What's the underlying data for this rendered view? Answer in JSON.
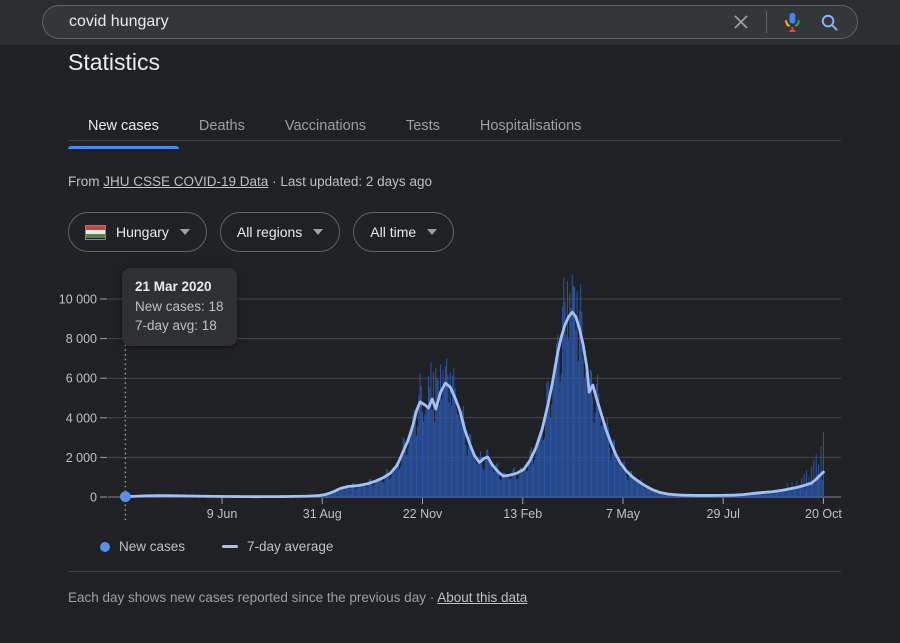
{
  "search": {
    "query": "covid hungary"
  },
  "page": {
    "title": "Statistics"
  },
  "tabs": [
    {
      "label": "New cases",
      "active": true
    },
    {
      "label": "Deaths",
      "active": false
    },
    {
      "label": "Vaccinations",
      "active": false
    },
    {
      "label": "Tests",
      "active": false
    },
    {
      "label": "Hospitalisations",
      "active": false
    }
  ],
  "source": {
    "prefix": "From",
    "link": "JHU CSSE COVID-19 Data",
    "separator": "·",
    "updated": "Last updated: 2 days ago"
  },
  "filters": {
    "country": {
      "label": "Hungary",
      "flag": "hungary-flag"
    },
    "region": {
      "label": "All regions"
    },
    "time": {
      "label": "All time"
    }
  },
  "tooltip": {
    "date": "21 Mar 2020",
    "line1": "New cases: 18",
    "line2": "7-day avg: 18"
  },
  "legend": [
    {
      "label": "New cases",
      "swatch": "dot"
    },
    {
      "label": "7-day average",
      "swatch": "line"
    }
  ],
  "footer": {
    "text": "Each day shows new cases reported since the previous day",
    "separator": "·",
    "link": "About this data"
  },
  "colors": {
    "accent-blue": "#4d8af0",
    "bar-blue": "#2b57ab",
    "avg-line-blue": "#a3c0f5",
    "dot-blue": "#5b8def",
    "grid": "#45484d",
    "axis-line": "#85898d",
    "tick-text": "#bdc1c6",
    "tick-mark": "#9aa0a6",
    "mic-blue": "#4285f4",
    "mic-red": "#ea4335",
    "mic-yellow": "#fbbc04",
    "mic-green": "#34a853",
    "search-blue": "#8ab4f8",
    "flag-red": "#c2473f",
    "flag-white": "#ece9e2",
    "flag-green": "#5a7d5c"
  },
  "chart_data": {
    "type": "bar",
    "title": "COVID-19 new cases in Hungary (daily bars with 7-day average line)",
    "x_axis": {
      "unit": "days since 21 Mar 2020",
      "start_date": "21 Mar 2020",
      "end_date": "20 Oct 2021",
      "ticks": [
        {
          "label": "9 Jun",
          "day": 80
        },
        {
          "label": "31 Aug",
          "day": 163
        },
        {
          "label": "22 Nov",
          "day": 246
        },
        {
          "label": "13 Feb",
          "day": 329
        },
        {
          "label": "7 May",
          "day": 412
        },
        {
          "label": "29 Jul",
          "day": 495
        },
        {
          "label": "20 Oct",
          "day": 578
        }
      ]
    },
    "y_axis": {
      "range": [
        0,
        11300
      ],
      "grid": true,
      "ticks": [
        {
          "value": 0,
          "label": "0"
        },
        {
          "value": 2000,
          "label": "2 000"
        },
        {
          "value": 4000,
          "label": "4 000"
        },
        {
          "value": 6000,
          "label": "6 000"
        },
        {
          "value": 8000,
          "label": "8 000"
        },
        {
          "value": 10000,
          "label": "10 000"
        }
      ]
    },
    "selected_point": {
      "date": "21 Mar 2020",
      "day": 0,
      "new_cases": 18,
      "seven_day_avg": 18
    },
    "legend_position": "bottom",
    "series": [
      {
        "name": "New cases",
        "type": "bar",
        "approximation": "daily bars estimated as 7-day average modulated by weekly reporting cycle; notable visible spikes listed in overrides",
        "weekly_amplitude": 0.2,
        "secondary_amplitude": 0.12,
        "overrides": {
          "251": 6100,
          "253": 6800,
          "255": 6300,
          "257": 6500,
          "259": 5900,
          "261": 6700,
          "263": 6400,
          "265": 6600,
          "267": 6200,
          "269": 6300,
          "362": 9600,
          "364": 9900,
          "366": 10900,
          "368": 10300,
          "370": 11200,
          "372": 10600,
          "374": 10400,
          "548": 700,
          "552": 760,
          "556": 820,
          "560": 950,
          "562": 1150,
          "564": 1350,
          "566": 1000,
          "568": 1550,
          "570": 1850,
          "572": 2150,
          "574": 1650,
          "576": 2550,
          "578": 3300
        }
      },
      {
        "name": "7-day average",
        "type": "line",
        "points": [
          [
            0,
            18
          ],
          [
            8,
            35
          ],
          [
            18,
            60
          ],
          [
            32,
            70
          ],
          [
            48,
            55
          ],
          [
            64,
            38
          ],
          [
            84,
            25
          ],
          [
            108,
            16
          ],
          [
            132,
            22
          ],
          [
            150,
            40
          ],
          [
            160,
            70
          ],
          [
            166,
            130
          ],
          [
            172,
            260
          ],
          [
            178,
            430
          ],
          [
            184,
            530
          ],
          [
            192,
            570
          ],
          [
            200,
            660
          ],
          [
            207,
            800
          ],
          [
            213,
            960
          ],
          [
            219,
            1180
          ],
          [
            225,
            1600
          ],
          [
            230,
            2300
          ],
          [
            234,
            2850
          ],
          [
            238,
            3600
          ],
          [
            241,
            4350
          ],
          [
            244,
            4800
          ],
          [
            248,
            4650
          ],
          [
            251,
            4500
          ],
          [
            254,
            4950
          ],
          [
            257,
            4450
          ],
          [
            261,
            5300
          ],
          [
            265,
            5750
          ],
          [
            269,
            5550
          ],
          [
            273,
            5000
          ],
          [
            277,
            4350
          ],
          [
            281,
            3400
          ],
          [
            285,
            2700
          ],
          [
            289,
            2100
          ],
          [
            293,
            1750
          ],
          [
            297,
            1950
          ],
          [
            300,
            2020
          ],
          [
            304,
            1600
          ],
          [
            309,
            1250
          ],
          [
            313,
            1060
          ],
          [
            318,
            1100
          ],
          [
            324,
            1200
          ],
          [
            330,
            1400
          ],
          [
            335,
            1850
          ],
          [
            340,
            2500
          ],
          [
            345,
            3400
          ],
          [
            350,
            4700
          ],
          [
            354,
            5900
          ],
          [
            358,
            7300
          ],
          [
            361,
            8100
          ],
          [
            364,
            8700
          ],
          [
            367,
            9100
          ],
          [
            370,
            9340
          ],
          [
            373,
            9100
          ],
          [
            376,
            8500
          ],
          [
            379,
            7700
          ],
          [
            382,
            6600
          ],
          [
            384,
            5300
          ],
          [
            387,
            5650
          ],
          [
            390,
            5000
          ],
          [
            394,
            4200
          ],
          [
            398,
            3400
          ],
          [
            402,
            2750
          ],
          [
            406,
            2150
          ],
          [
            410,
            1700
          ],
          [
            415,
            1300
          ],
          [
            420,
            1010
          ],
          [
            425,
            780
          ],
          [
            430,
            580
          ],
          [
            436,
            380
          ],
          [
            442,
            240
          ],
          [
            450,
            140
          ],
          [
            460,
            95
          ],
          [
            472,
            80
          ],
          [
            484,
            78
          ],
          [
            496,
            85
          ],
          [
            505,
            95
          ],
          [
            512,
            125
          ],
          [
            520,
            180
          ],
          [
            528,
            230
          ],
          [
            536,
            270
          ],
          [
            544,
            340
          ],
          [
            551,
            420
          ],
          [
            557,
            500
          ],
          [
            563,
            600
          ],
          [
            568,
            700
          ],
          [
            572,
            900
          ],
          [
            575,
            1080
          ],
          [
            578,
            1260
          ]
        ]
      }
    ]
  }
}
